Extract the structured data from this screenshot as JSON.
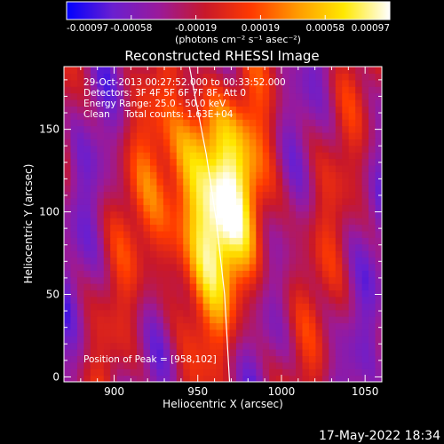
{
  "colorbar": {
    "ticks": [
      "-0.00097",
      "-0.00058",
      "-0.00019",
      "0.00019",
      "0.00058",
      "0.00097"
    ],
    "unit": "(photons cm⁻² s⁻¹ asec⁻²)",
    "range": [
      -0.00097,
      0.00097
    ],
    "palette": [
      "#0000ff",
      "#6a1fd0",
      "#9a1a9a",
      "#c8182a",
      "#ff3a00",
      "#ff9a00",
      "#ffe800",
      "#ffffff"
    ]
  },
  "chart_data": {
    "type": "heatmap",
    "title": "Reconstructed RHESSI Image",
    "xlabel": "Heliocentric X (arcsec)",
    "ylabel": "Heliocentric Y (arcsec)",
    "xlim": [
      870,
      1060
    ],
    "ylim": [
      -3,
      188
    ],
    "xticks": [
      900,
      950,
      1000,
      1050
    ],
    "yticks": [
      0,
      50,
      100,
      150
    ],
    "annotations": [
      "29-Oct-2013 00:27:52.000 to 00:33:52.000",
      "Detectors: 3F 4F 5F 6F 7F 8F, Att 0",
      "Energy Range: 25.0 - 50.0 keV",
      "Clean     Total counts: 1.63E+04"
    ],
    "peak_label": "Position of Peak = [958,102]",
    "peak": [
      958,
      102
    ],
    "limb_arc": [
      [
        945,
        188
      ],
      [
        955,
        135
      ],
      [
        961,
        95
      ],
      [
        966,
        50
      ],
      [
        969,
        -3
      ]
    ]
  },
  "footer": {
    "timestamp": "17-May-2022 18:34"
  }
}
